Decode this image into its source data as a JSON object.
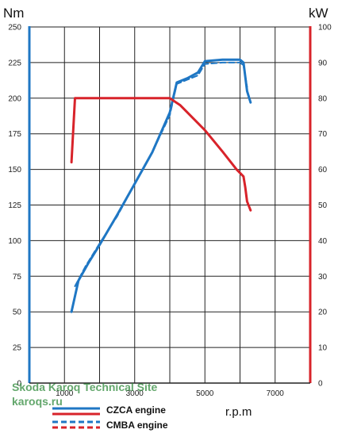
{
  "chart_data": {
    "type": "line",
    "x": {
      "label": "r.p.m",
      "ticks": [
        1000,
        3000,
        5000,
        7000
      ],
      "range": [
        0,
        8000
      ]
    },
    "y_left": {
      "label": "Nm",
      "ticks": [
        0,
        25,
        50,
        75,
        100,
        125,
        150,
        175,
        200,
        225,
        250
      ],
      "range": [
        0,
        250
      ]
    },
    "y_right": {
      "label": "kW",
      "ticks": [
        0,
        10,
        20,
        30,
        40,
        50,
        60,
        70,
        80,
        90,
        100
      ],
      "range": [
        0,
        100
      ]
    },
    "grid": true,
    "legend_position": "bottom-left",
    "series": [
      {
        "name": "CZCA engine",
        "quantity": "torque",
        "axis": "left",
        "color": "#1f77c4",
        "dash": "solid",
        "points": [
          [
            1200,
            50
          ],
          [
            1400,
            72
          ],
          [
            1700,
            85
          ],
          [
            2000,
            97
          ],
          [
            2500,
            118
          ],
          [
            3000,
            140
          ],
          [
            3500,
            162
          ],
          [
            4000,
            190
          ],
          [
            4200,
            211
          ],
          [
            4500,
            214
          ],
          [
            4800,
            218
          ],
          [
            5000,
            226
          ],
          [
            5500,
            227
          ],
          [
            6000,
            227
          ],
          [
            6100,
            225
          ],
          [
            6200,
            205
          ],
          [
            6300,
            197
          ]
        ]
      },
      {
        "name": "CMBA engine",
        "quantity": "torque",
        "axis": "left",
        "color": "#1f77c4",
        "dash": "dashed",
        "points": [
          [
            1300,
            68
          ],
          [
            1600,
            82
          ],
          [
            2000,
            98
          ],
          [
            2500,
            117
          ],
          [
            3000,
            140
          ],
          [
            3500,
            162
          ],
          [
            4000,
            188
          ],
          [
            4200,
            210
          ],
          [
            4500,
            213
          ],
          [
            4800,
            216
          ],
          [
            5000,
            224
          ],
          [
            5500,
            225
          ],
          [
            6000,
            225
          ],
          [
            6100,
            223
          ],
          [
            6200,
            208
          ]
        ]
      },
      {
        "name": "CZCA engine",
        "quantity": "power",
        "axis": "right",
        "color": "#d8232a",
        "dash": "solid",
        "points": [
          [
            1200,
            62
          ],
          [
            1300,
            80
          ],
          [
            1500,
            80
          ],
          [
            2000,
            80
          ],
          [
            2500,
            80
          ],
          [
            3000,
            80
          ],
          [
            3500,
            80
          ],
          [
            4000,
            80
          ],
          [
            4300,
            78
          ],
          [
            4800,
            73
          ],
          [
            5000,
            71
          ],
          [
            5500,
            65
          ],
          [
            5900,
            60
          ],
          [
            6000,
            59
          ],
          [
            6100,
            58
          ],
          [
            6150,
            55
          ],
          [
            6200,
            51
          ],
          [
            6300,
            48.5
          ]
        ]
      },
      {
        "name": "CMBA engine",
        "quantity": "power",
        "axis": "right",
        "color": "#d8232a",
        "dash": "dashed",
        "points": [
          [
            1500,
            80
          ],
          [
            2000,
            80
          ],
          [
            2500,
            80
          ],
          [
            3000,
            80
          ],
          [
            3500,
            80
          ],
          [
            4000,
            80
          ],
          [
            4300,
            78
          ],
          [
            4800,
            73
          ],
          [
            5000,
            71
          ],
          [
            5500,
            65
          ],
          [
            5900,
            60
          ],
          [
            6000,
            59
          ],
          [
            6100,
            58
          ],
          [
            6150,
            55
          ]
        ]
      }
    ]
  },
  "legend": [
    {
      "label": "CZCA engine",
      "style": "solid"
    },
    {
      "label": "CMBA engine",
      "style": "dashed"
    }
  ],
  "watermark": {
    "line1": "Skoda Karoq Technical Site",
    "line2": "karoqs.ru"
  },
  "colors": {
    "torque": "#1f77c4",
    "power": "#d8232a",
    "grid": "#222222"
  }
}
